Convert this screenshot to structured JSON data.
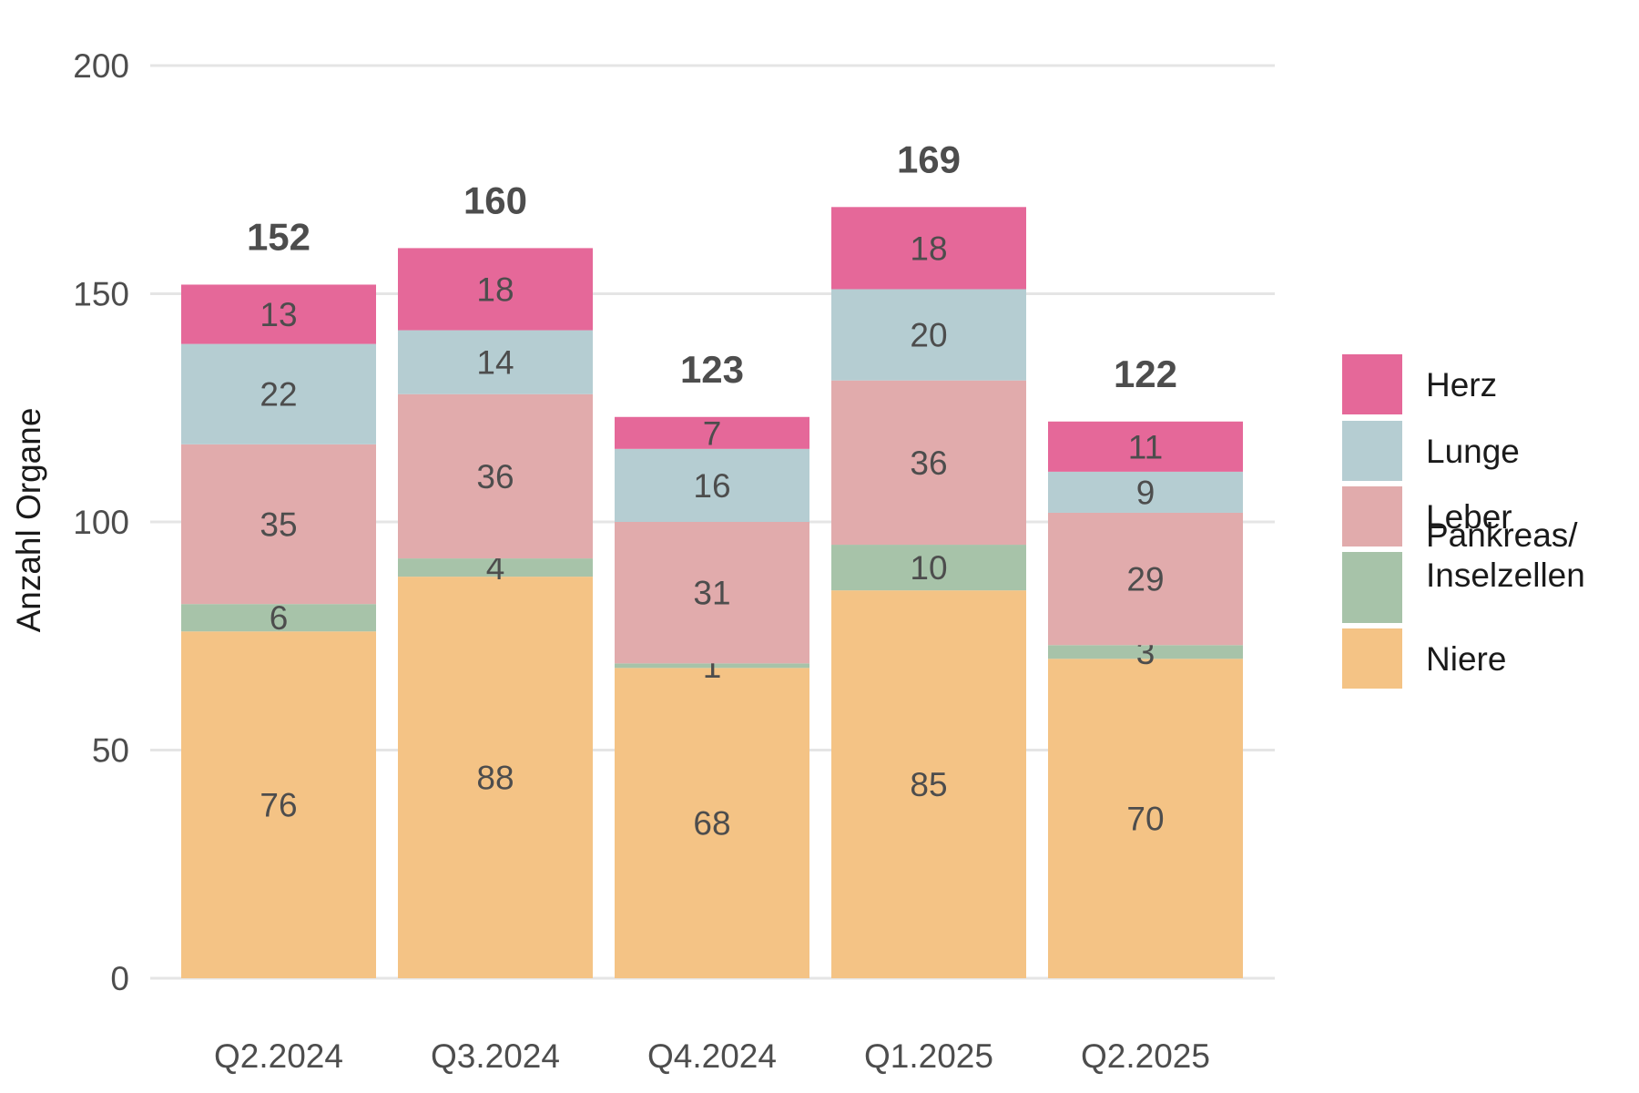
{
  "chart_data": {
    "type": "bar",
    "stacked": true,
    "title": "",
    "xlabel": "",
    "ylabel": "Anzahl Organe",
    "ylim": [
      0,
      200
    ],
    "yticks": [
      0,
      50,
      100,
      150,
      200
    ],
    "grid": "horizontal",
    "legend_position": "right",
    "categories": [
      "Q2.2024",
      "Q3.2024",
      "Q4.2024",
      "Q1.2025",
      "Q2.2025"
    ],
    "totals": [
      152,
      160,
      123,
      169,
      122
    ],
    "series": [
      {
        "name": "Niere",
        "color": "#F4C385",
        "values": [
          76,
          88,
          68,
          85,
          70
        ]
      },
      {
        "name": "Pankreas/ Inselzellen",
        "legend_lines": [
          "Pankreas/",
          "Inselzellen"
        ],
        "color": "#A7C3A9",
        "values": [
          6,
          4,
          1,
          10,
          3
        ]
      },
      {
        "name": "Leber",
        "color": "#E1ABAC",
        "values": [
          35,
          36,
          31,
          36,
          29
        ]
      },
      {
        "name": "Lunge",
        "color": "#B5CDD2",
        "values": [
          22,
          14,
          16,
          20,
          9
        ]
      },
      {
        "name": "Herz",
        "color": "#E56899",
        "values": [
          13,
          18,
          7,
          18,
          11
        ]
      }
    ]
  }
}
